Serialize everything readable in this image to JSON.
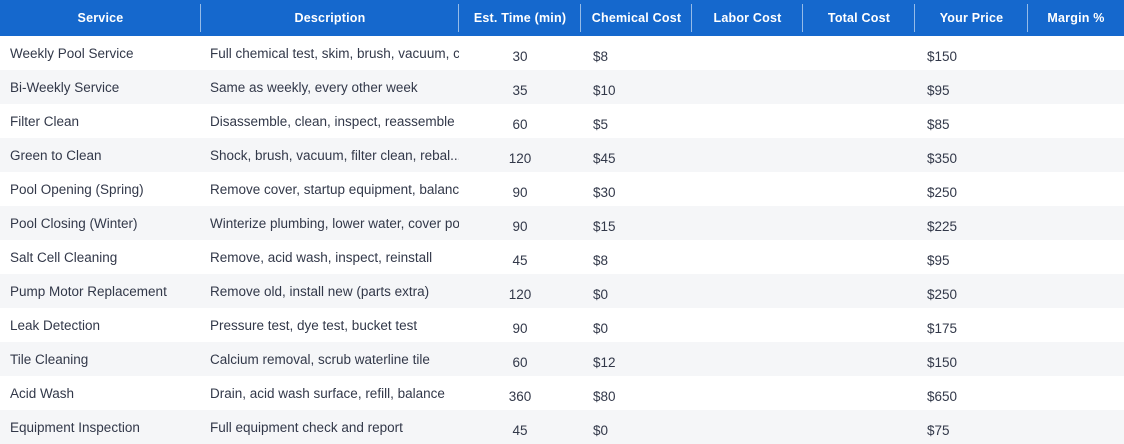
{
  "colors": {
    "header_bg": "#1568cd",
    "header_text": "#ffffff",
    "row_alt_bg": "#f5f6f8",
    "body_text": "#323849",
    "header_divider": "rgba(255,255,255,0.55)"
  },
  "table": {
    "columns": [
      {
        "label": "Service"
      },
      {
        "label": "Description"
      },
      {
        "label": "Est. Time (min)"
      },
      {
        "label": "Chemical Cost"
      },
      {
        "label": "Labor Cost"
      },
      {
        "label": "Total Cost"
      },
      {
        "label": "Your Price"
      },
      {
        "label": "Margin %"
      }
    ],
    "rows": [
      {
        "service": "Weekly Pool Service",
        "description": "Full chemical test, skim, brush, vacuum, cl...",
        "est_time_min": "30",
        "chemical_cost": "$8",
        "labor_cost": "",
        "total_cost": "",
        "your_price": "$150",
        "margin_pct": ""
      },
      {
        "service": "Bi-Weekly Service",
        "description": "Same as weekly, every other week",
        "est_time_min": "35",
        "chemical_cost": "$10",
        "labor_cost": "",
        "total_cost": "",
        "your_price": "$95",
        "margin_pct": ""
      },
      {
        "service": "Filter Clean",
        "description": "Disassemble, clean, inspect, reassemble",
        "est_time_min": "60",
        "chemical_cost": "$5",
        "labor_cost": "",
        "total_cost": "",
        "your_price": "$85",
        "margin_pct": ""
      },
      {
        "service": "Green to Clean",
        "description": "Shock, brush, vacuum, filter clean, rebal...",
        "est_time_min": "120",
        "chemical_cost": "$45",
        "labor_cost": "",
        "total_cost": "",
        "your_price": "$350",
        "margin_pct": ""
      },
      {
        "service": "Pool Opening (Spring)",
        "description": "Remove cover, startup equipment, balanc...",
        "est_time_min": "90",
        "chemical_cost": "$30",
        "labor_cost": "",
        "total_cost": "",
        "your_price": "$250",
        "margin_pct": ""
      },
      {
        "service": "Pool Closing (Winter)",
        "description": "Winterize plumbing, lower water, cover pool",
        "est_time_min": "90",
        "chemical_cost": "$15",
        "labor_cost": "",
        "total_cost": "",
        "your_price": "$225",
        "margin_pct": ""
      },
      {
        "service": "Salt Cell Cleaning",
        "description": "Remove, acid wash, inspect, reinstall",
        "est_time_min": "45",
        "chemical_cost": "$8",
        "labor_cost": "",
        "total_cost": "",
        "your_price": "$95",
        "margin_pct": ""
      },
      {
        "service": "Pump Motor Replacement",
        "description": "Remove old, install new (parts extra)",
        "est_time_min": "120",
        "chemical_cost": "$0",
        "labor_cost": "",
        "total_cost": "",
        "your_price": "$250",
        "margin_pct": ""
      },
      {
        "service": "Leak Detection",
        "description": "Pressure test, dye test, bucket test",
        "est_time_min": "90",
        "chemical_cost": "$0",
        "labor_cost": "",
        "total_cost": "",
        "your_price": "$175",
        "margin_pct": ""
      },
      {
        "service": "Tile Cleaning",
        "description": "Calcium removal, scrub waterline tile",
        "est_time_min": "60",
        "chemical_cost": "$12",
        "labor_cost": "",
        "total_cost": "",
        "your_price": "$150",
        "margin_pct": ""
      },
      {
        "service": "Acid Wash",
        "description": "Drain, acid wash surface, refill, balance",
        "est_time_min": "360",
        "chemical_cost": "$80",
        "labor_cost": "",
        "total_cost": "",
        "your_price": "$650",
        "margin_pct": ""
      },
      {
        "service": "Equipment Inspection",
        "description": "Full equipment check and report",
        "est_time_min": "45",
        "chemical_cost": "$0",
        "labor_cost": "",
        "total_cost": "",
        "your_price": "$75",
        "margin_pct": ""
      }
    ]
  }
}
